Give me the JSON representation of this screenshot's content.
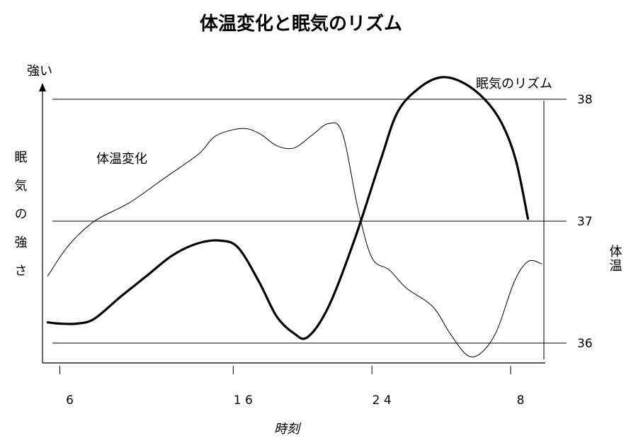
{
  "chart_data": {
    "type": "line",
    "title": "体温変化と眠気のリズム",
    "xlabel": "時刻",
    "ylabel_left": "眠気の強さ",
    "ylabel_left_top": "強い",
    "ylabel_right": "体温",
    "x_ticks": [
      {
        "t": 6,
        "label": "6"
      },
      {
        "t": 16,
        "label": "1 6"
      },
      {
        "t": 24,
        "label": "2 4"
      },
      {
        "t": 32,
        "label": "8"
      }
    ],
    "y_right_ticks": [
      {
        "v": 36,
        "label": "36"
      },
      {
        "v": 37,
        "label": "37"
      },
      {
        "v": 38,
        "label": "38"
      }
    ],
    "y_right_range": [
      35.8,
      38.2
    ],
    "x_range": [
      5,
      34
    ],
    "grid": "horizontal lines at 36, 37, 38",
    "series": [
      {
        "name": "体温変化",
        "style": "thin",
        "color": "#000000",
        "points": [
          [
            5.3,
            36.55
          ],
          [
            6.5,
            36.8
          ],
          [
            8,
            37.0
          ],
          [
            10,
            37.15
          ],
          [
            12,
            37.35
          ],
          [
            14,
            37.55
          ],
          [
            15,
            37.7
          ],
          [
            16.5,
            37.76
          ],
          [
            17.5,
            37.72
          ],
          [
            18.5,
            37.62
          ],
          [
            19.5,
            37.6
          ],
          [
            20.5,
            37.7
          ],
          [
            21.5,
            37.8
          ],
          [
            22.3,
            37.72
          ],
          [
            23.2,
            37.1
          ],
          [
            24,
            36.7
          ],
          [
            25,
            36.6
          ],
          [
            26,
            36.45
          ],
          [
            27.5,
            36.3
          ],
          [
            28.5,
            36.08
          ],
          [
            29.5,
            35.9
          ],
          [
            30.3,
            35.92
          ],
          [
            31.2,
            36.1
          ],
          [
            32.2,
            36.5
          ],
          [
            33,
            36.67
          ],
          [
            33.8,
            36.65
          ]
        ]
      },
      {
        "name": "眠気のリズム",
        "style": "thick",
        "color": "#000000",
        "points": [
          [
            5.3,
            36.17
          ],
          [
            6,
            36.16
          ],
          [
            7,
            36.16
          ],
          [
            8,
            36.2
          ],
          [
            9.5,
            36.38
          ],
          [
            11,
            36.55
          ],
          [
            12.5,
            36.72
          ],
          [
            14,
            36.82
          ],
          [
            15.3,
            36.84
          ],
          [
            16.3,
            36.78
          ],
          [
            17.5,
            36.5
          ],
          [
            18.5,
            36.22
          ],
          [
            19.5,
            36.08
          ],
          [
            20.3,
            36.05
          ],
          [
            21.5,
            36.3
          ],
          [
            23,
            36.85
          ],
          [
            24.5,
            37.5
          ],
          [
            25.5,
            37.9
          ],
          [
            26.8,
            38.1
          ],
          [
            28,
            38.18
          ],
          [
            29.2,
            38.14
          ],
          [
            30.5,
            38.0
          ],
          [
            31.5,
            37.8
          ],
          [
            32.3,
            37.5
          ],
          [
            33,
            37.02
          ]
        ]
      }
    ],
    "annotations": [
      {
        "text": "体温変化",
        "series": "体温変化"
      },
      {
        "text": "眠気のリズム",
        "series": "眠気のリズム"
      }
    ]
  }
}
